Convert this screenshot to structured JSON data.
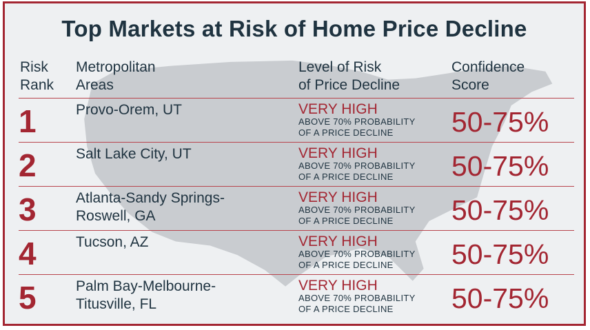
{
  "title": "Top Markets at Risk of Home Price Decline",
  "headers": {
    "rank": [
      "Risk",
      "Rank"
    ],
    "area": [
      "Metropolitan",
      "Areas"
    ],
    "level": [
      "Level of Risk",
      "of Price Decline"
    ],
    "confidence": [
      "Confidence",
      "Score"
    ]
  },
  "rows": [
    {
      "rank": "1",
      "area": [
        "Provo-Orem, UT",
        ""
      ],
      "level": "VERY HIGH",
      "sub": [
        "ABOVE 70% PROBABILITY",
        "OF A PRICE DECLINE"
      ],
      "confidence": "50-75%"
    },
    {
      "rank": "2",
      "area": [
        "Salt Lake City, UT",
        ""
      ],
      "level": "VERY HIGH",
      "sub": [
        "ABOVE 70% PROBABILITY",
        "OF A PRICE DECLINE"
      ],
      "confidence": "50-75%"
    },
    {
      "rank": "3",
      "area": [
        "Atlanta-Sandy Springs-",
        "Roswell, GA"
      ],
      "level": "VERY HIGH",
      "sub": [
        "ABOVE 70% PROBABILITY",
        "OF A PRICE DECLINE"
      ],
      "confidence": "50-75%"
    },
    {
      "rank": "4",
      "area": [
        "Tucson, AZ",
        ""
      ],
      "level": "VERY HIGH",
      "sub": [
        "ABOVE 70% PROBABILITY",
        "OF A PRICE DECLINE"
      ],
      "confidence": "50-75%"
    },
    {
      "rank": "5",
      "area": [
        "Palm Bay-Melbourne-",
        "Titusville, FL"
      ],
      "level": "VERY HIGH",
      "sub": [
        "ABOVE 70% PROBABILITY",
        "OF A PRICE DECLINE"
      ],
      "confidence": "50-75%"
    }
  ],
  "colors": {
    "accent": "#a32632",
    "text": "#1f3340",
    "background": "#eef0f2",
    "map": "#c5c8cb"
  }
}
